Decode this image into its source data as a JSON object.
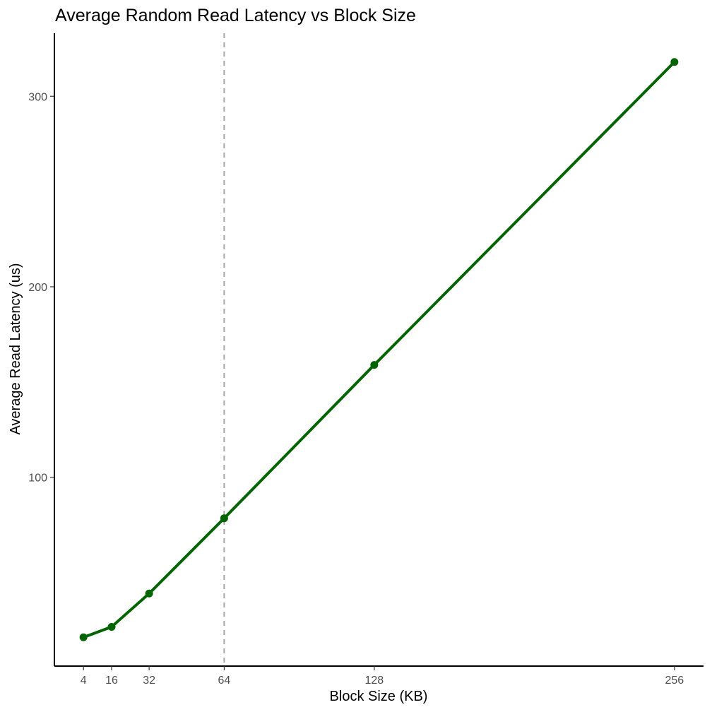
{
  "chart_data": {
    "type": "line",
    "title": "Average Random Read Latency vs Block Size",
    "xlabel": "Block Size (KB)",
    "ylabel": "Average Read Latency (us)",
    "x": [
      4,
      16,
      32,
      64,
      128,
      256
    ],
    "series": [
      {
        "values": [
          16,
          21.5,
          39,
          78.5,
          159,
          318
        ]
      }
    ],
    "xticks": [
      4,
      16,
      32,
      64,
      128,
      256
    ],
    "yticks": [
      100,
      200,
      300
    ],
    "xlim": [
      -8.4,
      268.4
    ],
    "ylim": [
      0.9,
      333.1
    ],
    "grid": false,
    "reference_line": {
      "axis": "x",
      "value": 64,
      "style": "dashed",
      "color": "#a6a6a6"
    },
    "colors": {
      "series": "#006400",
      "reference": "#a6a6a6"
    }
  }
}
